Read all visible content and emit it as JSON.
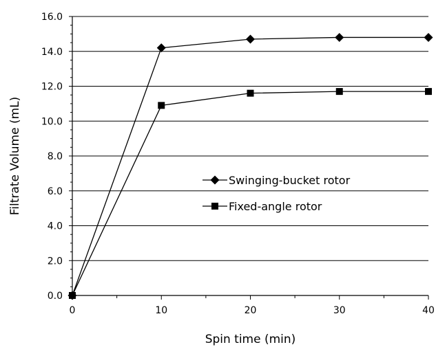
{
  "chart_data": {
    "type": "line",
    "title": "",
    "xlabel": "Spin time (min)",
    "ylabel": "Filtrate Volume (mL)",
    "xlim": [
      0,
      40
    ],
    "ylim": [
      0,
      16
    ],
    "x_ticks": [
      0,
      10,
      20,
      30,
      40
    ],
    "x_tick_labels": [
      "0",
      "10",
      "20",
      "30",
      "40"
    ],
    "y_ticks": [
      0,
      2,
      4,
      6,
      8,
      10,
      12,
      14,
      16
    ],
    "y_tick_labels": [
      "0.0",
      "2.0",
      "4.0",
      "6.0",
      "8.0",
      "10.0",
      "12.0",
      "14.0",
      "16.0"
    ],
    "grid": "horizontal",
    "legend_position": "center-right",
    "series": [
      {
        "name": "Swinging-bucket rotor",
        "marker": "diamond",
        "color": "#000000",
        "x": [
          0,
          10,
          20,
          30,
          40
        ],
        "y": [
          0.0,
          14.2,
          14.7,
          14.8,
          14.8
        ]
      },
      {
        "name": "Fixed-angle rotor",
        "marker": "square",
        "color": "#000000",
        "x": [
          0,
          10,
          20,
          30,
          40
        ],
        "y": [
          0.0,
          10.9,
          11.6,
          11.7,
          11.7
        ]
      }
    ]
  }
}
